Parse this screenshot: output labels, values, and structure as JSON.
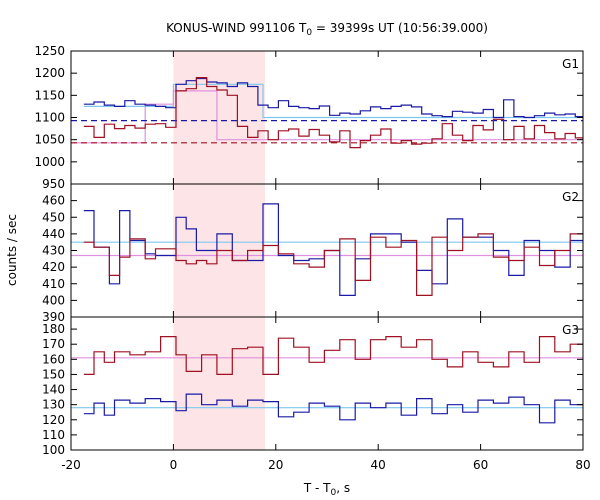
{
  "chart_data": {
    "type": "line",
    "title": {
      "pre": "KONUS-WIND 991106 T",
      "sub": "0",
      "post": " = 39399s UT (10:56:39.000)"
    },
    "xlabel": {
      "pre": "T - T",
      "sub": "0",
      "post": ", s"
    },
    "ylabel": "counts / sec",
    "xlim": [
      -20,
      80
    ],
    "x_ticks": [
      "-20",
      "0",
      "20",
      "40",
      "60",
      "80"
    ],
    "x_tick_values": [
      -20,
      0,
      20,
      40,
      60,
      80
    ],
    "shaded_interval": [
      0,
      17.9
    ],
    "colors": {
      "blue": "#1a1aa6",
      "red": "#a01020",
      "cyan": "#7ec8f0",
      "violet": "#e090e0",
      "shade": "#fde4e6"
    },
    "panels": [
      {
        "name": "G1",
        "ylim": [
          950,
          1250
        ],
        "y_ticks": [
          "950",
          "1000",
          "1050",
          "1100",
          "1150",
          "1200",
          "1250"
        ],
        "y_tick_values": [
          950,
          1000,
          1050,
          1100,
          1150,
          1200,
          1250
        ],
        "bin_edges": [
          -17.5,
          -15.5,
          -13.5,
          -11.5,
          -9.5,
          -7.5,
          -5.5,
          -3.5,
          -1.5,
          0.5,
          2.5,
          4.5,
          6.5,
          8.5,
          10.5,
          12.5,
          14.5,
          16.5,
          18.5,
          20.5,
          22.5,
          24.5,
          26.5,
          28.5,
          30.5,
          32.5,
          34.5,
          36.5,
          38.5,
          40.5,
          42.5,
          44.5,
          46.5,
          48.5,
          50.5,
          52.5,
          54.5,
          56.5,
          58.5,
          60.5,
          62.5,
          64.5,
          66.5,
          68.5,
          70.5,
          72.5,
          74.5,
          76.5,
          78.5,
          80
        ],
        "series": [
          {
            "color": "blue",
            "values": [
              1130,
              1135,
              1128,
              1125,
              1138,
              1130,
              1128,
              1125,
              1122,
              1175,
              1183,
              1188,
              1180,
              1178,
              1170,
              1178,
              1170,
              1128,
              1122,
              1138,
              1125,
              1122,
              1120,
              1126,
              1105,
              1110,
              1108,
              1115,
              1124,
              1120,
              1125,
              1128,
              1124,
              1108,
              1104,
              1102,
              1114,
              1112,
              1110,
              1118,
              1100,
              1140,
              1102,
              1100,
              1104,
              1110,
              1106,
              1108,
              1102
            ]
          },
          {
            "color": "red",
            "values": [
              1080,
              1055,
              1085,
              1075,
              1082,
              1076,
              1085,
              1086,
              1078,
              1160,
              1165,
              1190,
              1170,
              1162,
              1150,
              1080,
              1055,
              1070,
              1050,
              1070,
              1074,
              1058,
              1073,
              1060,
              1045,
              1070,
              1032,
              1048,
              1060,
              1074,
              1042,
              1048,
              1040,
              1042,
              1052,
              1086,
              1060,
              1048,
              1082,
              1072,
              1096,
              1050,
              1080,
              1052,
              1082,
              1066,
              1052,
              1064,
              1054
            ]
          }
        ],
        "lines": [
          {
            "color": "cyan",
            "style": "solid",
            "segments": [
              [
                -17.5,
                1125
              ],
              [
                -5.5,
                1125
              ],
              [
                -5.5,
                1125
              ],
              [
                0,
                1125
              ],
              [
                0,
                1175
              ],
              [
                17.5,
                1175
              ],
              [
                17.5,
                1100
              ],
              [
                80,
                1100
              ]
            ]
          },
          {
            "color": "violet",
            "style": "solid",
            "segments": [
              [
                -20,
                1043
              ],
              [
                -5.5,
                1043
              ],
              [
                -5.5,
                1130
              ],
              [
                0,
                1130
              ],
              [
                0,
                1160
              ],
              [
                8.5,
                1160
              ],
              [
                8.5,
                1050
              ],
              [
                80,
                1050
              ]
            ]
          },
          {
            "color": "blue",
            "style": "dashed",
            "segments": [
              [
                -20,
                1093
              ],
              [
                80,
                1093
              ]
            ]
          },
          {
            "color": "red",
            "style": "dashed",
            "segments": [
              [
                -20,
                1043
              ],
              [
                80,
                1043
              ]
            ]
          }
        ]
      },
      {
        "name": "G2",
        "ylim": [
          390,
          470
        ],
        "y_ticks": [
          "390",
          "400",
          "410",
          "420",
          "430",
          "440",
          "450",
          "460"
        ],
        "y_tick_values": [
          390,
          400,
          410,
          420,
          430,
          440,
          450,
          460
        ],
        "bin_edges": [
          -17.5,
          -15.5,
          -12.5,
          -10.5,
          -8.5,
          -5.5,
          -3.5,
          0.5,
          2.5,
          4.5,
          6.5,
          8.5,
          11.5,
          14.5,
          17.5,
          20.5,
          23.5,
          26.5,
          29.5,
          32.5,
          35.5,
          38.5,
          41.5,
          44.5,
          47.5,
          50.5,
          53.5,
          56.5,
          59.5,
          62.5,
          65.5,
          68.5,
          71.5,
          74.5,
          77.5,
          80
        ],
        "series": [
          {
            "color": "blue",
            "values": [
              454,
              432,
              410,
              454,
              436,
              428,
              427,
              450,
              443,
              430,
              430,
              440,
              424,
              424,
              458,
              427,
              424,
              425,
              430,
              403,
              425,
              440,
              440,
              435,
              418,
              410,
              449,
              438,
              438,
              430,
              415,
              436,
              430,
              420,
              436
            ]
          },
          {
            "color": "red",
            "values": [
              435,
              432,
              415,
              426,
              437,
              425,
              431,
              424,
              422,
              424,
              422,
              430,
              424,
              430,
              433,
              428,
              422,
              420,
              430,
              437,
              412,
              438,
              432,
              436,
              403,
              438,
              430,
              438,
              440,
              426,
              424,
              432,
              421,
              430,
              440
            ]
          }
        ],
        "lines": [
          {
            "color": "cyan",
            "style": "solid",
            "segments": [
              [
                -20,
                435
              ],
              [
                80,
                435
              ]
            ]
          },
          {
            "color": "violet",
            "style": "solid",
            "segments": [
              [
                -20,
                427
              ],
              [
                80,
                427
              ]
            ]
          }
        ]
      },
      {
        "name": "G3",
        "ylim": [
          100,
          188
        ],
        "y_ticks": [
          "100",
          "110",
          "120",
          "130",
          "140",
          "150",
          "160",
          "170",
          "180"
        ],
        "y_tick_values": [
          100,
          110,
          120,
          130,
          140,
          150,
          160,
          170,
          180
        ],
        "bin_edges": [
          -17.5,
          -15.5,
          -13.5,
          -11.5,
          -8.5,
          -5.5,
          -2.5,
          0.5,
          2.5,
          5.5,
          8.5,
          11.5,
          14.5,
          17.5,
          20.5,
          23.5,
          26.5,
          29.5,
          32.5,
          35.5,
          38.5,
          41.5,
          44.5,
          47.5,
          50.5,
          53.5,
          56.5,
          59.5,
          62.5,
          65.5,
          68.5,
          71.5,
          74.5,
          77.5,
          80
        ],
        "series": [
          {
            "color": "blue",
            "values": [
              124,
              131,
              123,
              133,
              131,
              134,
              132,
              126,
              137,
              130,
              133,
              129,
              133,
              132,
              122,
              125,
              131,
              129,
              120,
              131,
              128,
              131,
              123,
              134,
              124,
              130,
              125,
              133,
              131,
              135,
              130,
              118,
              133,
              130
            ]
          },
          {
            "color": "red",
            "values": [
              150,
              165,
              158,
              165,
              163,
              165,
              175,
              163,
              152,
              163,
              150,
              167,
              168,
              150,
              174,
              168,
              158,
              166,
              173,
              160,
              173,
              175,
              168,
              173,
              160,
              155,
              165,
              158,
              155,
              165,
              158,
              175,
              165,
              170
            ]
          }
        ],
        "lines": [
          {
            "color": "cyan",
            "style": "solid",
            "segments": [
              [
                -20,
                128
              ],
              [
                80,
                128
              ]
            ]
          },
          {
            "color": "violet",
            "style": "solid",
            "segments": [
              [
                -20,
                161
              ],
              [
                80,
                161
              ]
            ]
          }
        ]
      }
    ]
  }
}
